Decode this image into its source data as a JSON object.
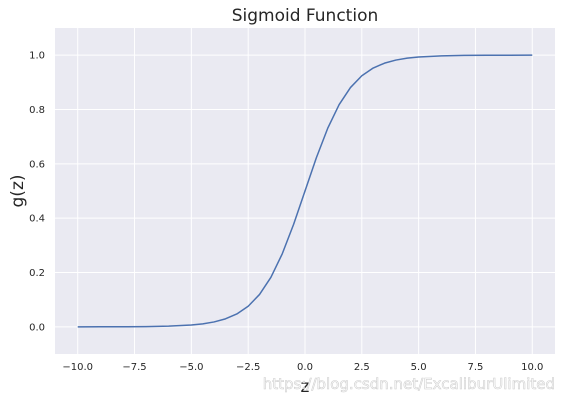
{
  "chart_data": {
    "type": "line",
    "title": "Sigmoid Function",
    "xlabel": "z",
    "ylabel": "g(z)",
    "xlim": [
      -11,
      11
    ],
    "ylim": [
      -0.1,
      1.1
    ],
    "x_ticks": [
      -10.0,
      -7.5,
      -5.0,
      -2.5,
      0.0,
      2.5,
      5.0,
      7.5,
      10.0
    ],
    "x_tick_labels": [
      "−10.0",
      "−7.5",
      "−5.0",
      "−2.5",
      "0.0",
      "2.5",
      "5.0",
      "7.5",
      "10.0"
    ],
    "y_ticks": [
      0.0,
      0.2,
      0.4,
      0.6,
      0.8,
      1.0
    ],
    "y_tick_labels": [
      "0.0",
      "0.2",
      "0.4",
      "0.6",
      "0.8",
      "1.0"
    ],
    "grid": true,
    "series": [
      {
        "color": "#4c72b0",
        "x": [
          -10.0,
          -9.0,
          -8.0,
          -7.0,
          -6.0,
          -5.0,
          -4.5,
          -4.0,
          -3.5,
          -3.0,
          -2.5,
          -2.0,
          -1.5,
          -1.0,
          -0.5,
          0.0,
          0.5,
          1.0,
          1.5,
          2.0,
          2.5,
          3.0,
          3.5,
          4.0,
          4.5,
          5.0,
          6.0,
          7.0,
          8.0,
          9.0,
          10.0
        ],
        "y": [
          0.0,
          0.0001,
          0.0003,
          0.0009,
          0.0025,
          0.0067,
          0.011,
          0.018,
          0.0293,
          0.0474,
          0.0759,
          0.1192,
          0.1824,
          0.2689,
          0.3775,
          0.5,
          0.6225,
          0.7311,
          0.8176,
          0.8808,
          0.9241,
          0.9526,
          0.9707,
          0.982,
          0.989,
          0.9933,
          0.9975,
          0.9991,
          0.9997,
          0.9999,
          1.0
        ]
      }
    ]
  },
  "watermark": "https://blog.csdn.net/ExcaliburUlimited",
  "colors": {
    "plot_background": "#eaeaf2",
    "grid": "#ffffff",
    "text": "#262626"
  }
}
